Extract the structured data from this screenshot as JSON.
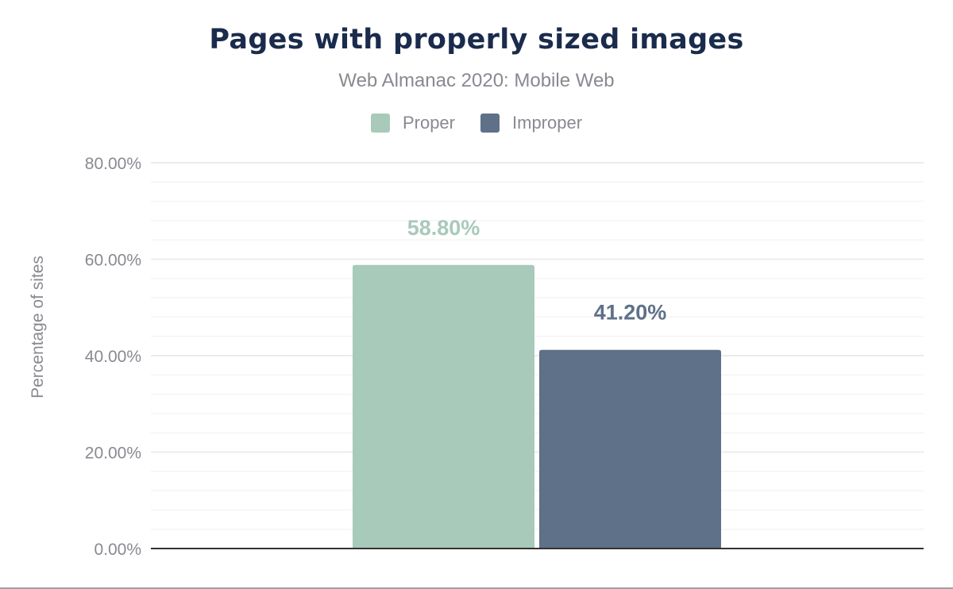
{
  "chart_data": {
    "type": "bar",
    "title": "Pages with properly sized images",
    "subtitle": "Web Almanac 2020: Mobile Web",
    "xlabel": "",
    "ylabel": "Percentage of sites",
    "ylim": [
      0,
      80
    ],
    "yticks": [
      "0.00%",
      "20.00%",
      "40.00%",
      "60.00%",
      "80.00%"
    ],
    "grid": true,
    "legend_placement": "top",
    "categories": [
      ""
    ],
    "series": [
      {
        "name": "Proper",
        "values": [
          58.8
        ],
        "label": "58.80%",
        "color": "#a8cabb"
      },
      {
        "name": "Improper",
        "values": [
          41.2
        ],
        "label": "41.20%",
        "color": "#5f7089"
      }
    ]
  }
}
